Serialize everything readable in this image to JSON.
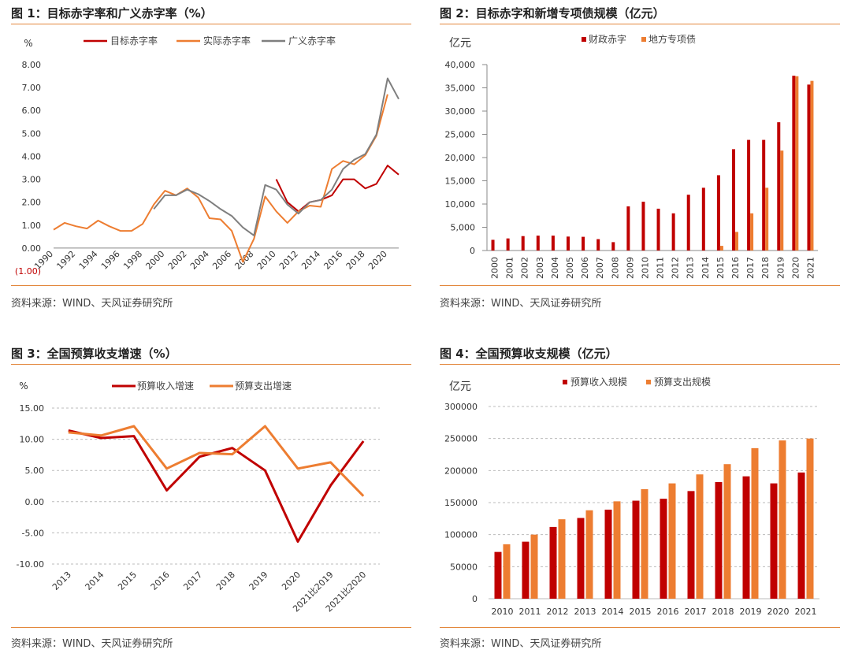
{
  "source_text": "资料来源：WIND、天风证券研究所",
  "colors": {
    "red": "#C00000",
    "orange": "#ED7D31",
    "gray": "#7F7F7F",
    "accent": "#E3873C"
  },
  "chart_data": [
    {
      "id": "fig1",
      "type": "line",
      "title": "图 1：目标赤字率和广义赤字率（%）",
      "ylabel": "%",
      "ylim": [
        -1,
        8
      ],
      "yticks": [
        "(1.00)",
        "0.00",
        "1.00",
        "2.00",
        "3.00",
        "4.00",
        "5.00",
        "6.00",
        "7.00",
        "8.00"
      ],
      "xticks": [
        "1990",
        "1992",
        "1994",
        "1996",
        "1998",
        "2000",
        "2002",
        "2004",
        "2006",
        "2008",
        "2010",
        "2012",
        "2014",
        "2016",
        "2018",
        "2020"
      ],
      "x": [
        1990,
        1991,
        1992,
        1993,
        1994,
        1995,
        1996,
        1997,
        1998,
        1999,
        2000,
        2001,
        2002,
        2003,
        2004,
        2005,
        2006,
        2007,
        2008,
        2009,
        2010,
        2011,
        2012,
        2013,
        2014,
        2015,
        2016,
        2017,
        2018,
        2019,
        2020,
        2021
      ],
      "series": [
        {
          "name": "目标赤字率",
          "color": "#C00000",
          "values": [
            null,
            null,
            null,
            null,
            null,
            null,
            null,
            null,
            null,
            null,
            null,
            null,
            null,
            null,
            null,
            null,
            null,
            null,
            null,
            null,
            3.0,
            2.0,
            1.6,
            2.0,
            2.1,
            2.3,
            3.0,
            3.0,
            2.6,
            2.8,
            3.6,
            3.2
          ]
        },
        {
          "name": "实际赤字率",
          "color": "#ED7D31",
          "values": [
            0.8,
            1.1,
            0.95,
            0.85,
            1.2,
            0.95,
            0.75,
            0.75,
            1.05,
            1.9,
            2.5,
            2.3,
            2.6,
            2.2,
            1.3,
            1.25,
            0.75,
            -0.6,
            0.4,
            2.25,
            1.6,
            1.1,
            1.6,
            1.85,
            1.8,
            3.45,
            3.8,
            3.65,
            4.05,
            4.9,
            6.7,
            null
          ]
        },
        {
          "name": "广义赤字率",
          "color": "#7F7F7F",
          "values": [
            null,
            null,
            null,
            null,
            null,
            null,
            null,
            null,
            null,
            1.7,
            2.3,
            2.3,
            2.55,
            2.35,
            2.05,
            1.7,
            1.4,
            0.9,
            0.55,
            2.75,
            2.55,
            1.9,
            1.5,
            2.0,
            2.1,
            2.55,
            3.45,
            3.85,
            4.1,
            4.95,
            7.4,
            6.5
          ]
        }
      ]
    },
    {
      "id": "fig2",
      "type": "bar",
      "title": "图 2：目标赤字和新增专项债规模（亿元）",
      "ylabel": "亿元",
      "ylim": [
        0,
        40000
      ],
      "yticks": [
        "0",
        "5,000",
        "10,000",
        "15,000",
        "20,000",
        "25,000",
        "30,000",
        "35,000",
        "40,000"
      ],
      "categories": [
        "2000",
        "2001",
        "2002",
        "2003",
        "2004",
        "2005",
        "2006",
        "2007",
        "2008",
        "2009",
        "2010",
        "2011",
        "2012",
        "2013",
        "2014",
        "2015",
        "2016",
        "2017",
        "2018",
        "2019",
        "2020",
        "2021"
      ],
      "series": [
        {
          "name": "财政赤字",
          "color": "#C00000",
          "values": [
            2300,
            2600,
            3100,
            3200,
            3200,
            3000,
            2950,
            2450,
            1800,
            9500,
            10500,
            9000,
            8000,
            12000,
            13500,
            16200,
            21800,
            23800,
            23800,
            27600,
            37600,
            35700
          ]
        },
        {
          "name": "地方专项债",
          "color": "#ED7D31",
          "values": [
            0,
            0,
            0,
            0,
            0,
            0,
            0,
            0,
            0,
            0,
            0,
            0,
            0,
            0,
            0,
            1000,
            4000,
            8000,
            13500,
            21500,
            37500,
            36500
          ]
        }
      ]
    },
    {
      "id": "fig3",
      "type": "line",
      "title": "图 3：全国预算收支增速（%）",
      "ylabel": "%",
      "ylim": [
        -10,
        15
      ],
      "yticks": [
        "-10.00",
        "-5.00",
        "0.00",
        "5.00",
        "10.00",
        "15.00"
      ],
      "categories": [
        "2013",
        "2014",
        "2015",
        "2016",
        "2017",
        "2018",
        "2019",
        "2020",
        "2021比2019",
        "2021比2020"
      ],
      "series": [
        {
          "name": "预算收入增速",
          "color": "#C00000",
          "values": [
            11.4,
            10.2,
            10.5,
            1.8,
            7.2,
            8.6,
            5.0,
            -6.4,
            2.6,
            9.7
          ]
        },
        {
          "name": "预算支出增速",
          "color": "#ED7D31",
          "values": [
            11.1,
            10.6,
            12.1,
            5.3,
            7.8,
            7.6,
            12.1,
            5.3,
            6.3,
            0.9
          ]
        }
      ]
    },
    {
      "id": "fig4",
      "type": "bar",
      "title": "图 4：全国预算收支规模（亿元）",
      "ylabel": "亿元",
      "ylim": [
        0,
        300000
      ],
      "yticks": [
        "0",
        "50000",
        "100000",
        "150000",
        "200000",
        "250000",
        "300000"
      ],
      "categories": [
        "2010",
        "2011",
        "2012",
        "2013",
        "2014",
        "2015",
        "2016",
        "2017",
        "2018",
        "2019",
        "2020",
        "2021"
      ],
      "series": [
        {
          "name": "预算收入规模",
          "color": "#C00000",
          "values": [
            73000,
            89000,
            112000,
            126000,
            139000,
            153000,
            156000,
            168000,
            182000,
            191000,
            180000,
            197000
          ]
        },
        {
          "name": "预算支出规模",
          "color": "#ED7D31",
          "values": [
            85000,
            100000,
            124000,
            138000,
            152000,
            171000,
            180000,
            194000,
            210000,
            235000,
            247000,
            250000
          ]
        }
      ]
    }
  ]
}
